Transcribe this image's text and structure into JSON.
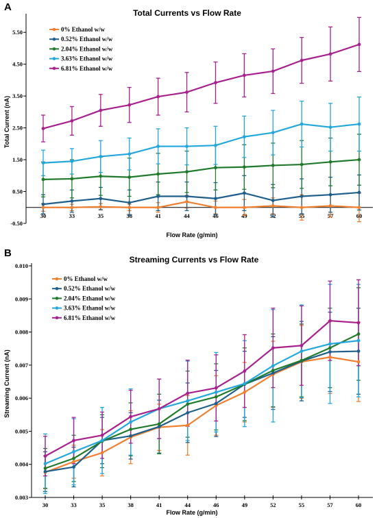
{
  "chart_data": [
    {
      "panel": "A",
      "type": "line",
      "title": "Total Currents vs Flow Rate",
      "xlabel": "Flow Rate (g/min)",
      "ylabel": "Total Current (nA)",
      "categories": [
        "30",
        "33",
        "35",
        "38",
        "41",
        "44",
        "46",
        "49",
        "52",
        "55",
        "57",
        "60"
      ],
      "ylim": [
        -0.5,
        6.0
      ],
      "yticks": [
        "-0.50",
        "0.50",
        "1.50",
        "2.50",
        "3.50",
        "4.50",
        "5.50"
      ],
      "ytick_values": [
        -0.5,
        0.5,
        1.5,
        2.5,
        3.5,
        4.5,
        5.5
      ],
      "legend_position": "top-left",
      "grid": false,
      "series": [
        {
          "name": "0% Ethanol w/w",
          "color": "#f07f2f",
          "values": [
            0.0,
            0.0,
            0.02,
            0.0,
            0.0,
            0.18,
            0.0,
            0.0,
            0.05,
            0.0,
            0.05,
            0.0
          ],
          "errors": [
            0.12,
            0.1,
            0.1,
            0.1,
            0.15,
            0.2,
            0.2,
            0.25,
            0.25,
            0.4,
            0.35,
            0.45
          ]
        },
        {
          "name": "0.52% Ethanol w/w",
          "color": "#1f5f8b",
          "values": [
            0.1,
            0.2,
            0.28,
            0.15,
            0.35,
            0.35,
            0.28,
            0.45,
            0.22,
            0.35,
            0.4,
            0.47
          ],
          "errors": [
            0.3,
            0.35,
            0.35,
            0.4,
            0.45,
            0.45,
            0.5,
            0.55,
            0.5,
            0.55,
            0.55,
            0.55
          ]
        },
        {
          "name": "2.04% Ethanol w/w",
          "color": "#1f7a2b",
          "values": [
            0.88,
            0.9,
            0.98,
            0.95,
            1.05,
            1.12,
            1.25,
            1.27,
            1.32,
            1.35,
            1.43,
            1.5
          ],
          "errors": [
            0.55,
            0.6,
            0.6,
            0.6,
            0.65,
            0.65,
            0.7,
            0.7,
            0.7,
            0.75,
            0.75,
            0.8
          ]
        },
        {
          "name": "3.63% Ethanol w/w",
          "color": "#22a7dc",
          "values": [
            1.4,
            1.45,
            1.6,
            1.68,
            1.92,
            1.92,
            1.95,
            2.22,
            2.35,
            2.62,
            2.52,
            2.62
          ],
          "errors": [
            0.4,
            0.4,
            0.5,
            0.5,
            0.55,
            0.58,
            0.6,
            0.65,
            0.7,
            0.72,
            0.75,
            0.85
          ]
        },
        {
          "name": "6.81% Ethanol w/w",
          "color": "#a8208e",
          "values": [
            2.48,
            2.72,
            3.05,
            3.22,
            3.48,
            3.62,
            3.92,
            4.15,
            4.28,
            4.62,
            4.82,
            5.12
          ],
          "errors": [
            0.42,
            0.45,
            0.5,
            0.55,
            0.58,
            0.62,
            0.65,
            0.68,
            0.7,
            0.72,
            0.85,
            0.85
          ]
        }
      ]
    },
    {
      "panel": "B",
      "type": "line",
      "title": "Streaming Currents vs Flow Rate",
      "xlabel": "Flow Rate (g/min)",
      "ylabel": "Streaming Current (nA)",
      "categories": [
        "30",
        "33",
        "35",
        "38",
        "41",
        "44",
        "46",
        "49",
        "52",
        "55",
        "57",
        "60"
      ],
      "ylim": [
        0.003,
        0.01
      ],
      "yticks": [
        "0.003",
        "0.004",
        "0.005",
        "0.006",
        "0.007",
        "0.008",
        "0.009",
        "0.010"
      ],
      "ytick_values": [
        0.003,
        0.004,
        0.005,
        0.006,
        0.007,
        0.008,
        0.009,
        0.01
      ],
      "legend_position": "top-left",
      "grid": false,
      "series": [
        {
          "name": "0% Ethanol w/w",
          "color": "#f07f2f",
          "values": [
            0.00376,
            0.00408,
            0.00435,
            0.00482,
            0.00512,
            0.00518,
            0.00578,
            0.00618,
            0.00672,
            0.0071,
            0.00724,
            0.0071
          ],
          "errors": [
            0.0005,
            0.0005,
            0.0007,
            0.0008,
            0.0007,
            0.0009,
            0.0009,
            0.0009,
            0.001,
            0.0011,
            0.0011,
            0.0012
          ]
        },
        {
          "name": "0.52% Ethanol w/w",
          "color": "#1f5f8b",
          "values": [
            0.00378,
            0.00392,
            0.00472,
            0.00486,
            0.00514,
            0.00556,
            0.00584,
            0.00642,
            0.00676,
            0.00712,
            0.0074,
            0.00742
          ],
          "errors": [
            0.0006,
            0.0006,
            0.0007,
            0.0007,
            0.0008,
            0.0009,
            0.001,
            0.001,
            0.0011,
            0.0012,
            0.0012,
            0.0013
          ]
        },
        {
          "name": "2.04% Ethanol w/w",
          "color": "#1f7a2b",
          "values": [
            0.00388,
            0.00418,
            0.0047,
            0.00506,
            0.00522,
            0.00582,
            0.00604,
            0.00642,
            0.00684,
            0.00714,
            0.00752,
            0.00794
          ],
          "errors": [
            0.0006,
            0.0007,
            0.0008,
            0.0008,
            0.0009,
            0.001,
            0.001,
            0.0011,
            0.0011,
            0.0011,
            0.0012,
            0.0014
          ]
        },
        {
          "name": "3.63% Ethanol w/w",
          "color": "#22a7dc",
          "values": [
            0.00402,
            0.00438,
            0.00472,
            0.00528,
            0.00568,
            0.00592,
            0.00618,
            0.00644,
            0.00698,
            0.00742,
            0.00764,
            0.00774
          ],
          "errors": [
            0.0009,
            0.001,
            0.001,
            0.001,
            0.0009,
            0.0012,
            0.0012,
            0.0013,
            0.0017,
            0.0014,
            0.0018,
            0.0017
          ]
        },
        {
          "name": "6.81% Ethanol w/w",
          "color": "#a8208e",
          "values": [
            0.00425,
            0.00472,
            0.00488,
            0.00544,
            0.00568,
            0.00615,
            0.00631,
            0.00682,
            0.00752,
            0.00759,
            0.00834,
            0.00828
          ],
          "errors": [
            0.0006,
            0.0007,
            0.0007,
            0.0008,
            0.0009,
            0.001,
            0.001,
            0.0011,
            0.0012,
            0.0012,
            0.0012,
            0.0013
          ]
        }
      ]
    }
  ]
}
